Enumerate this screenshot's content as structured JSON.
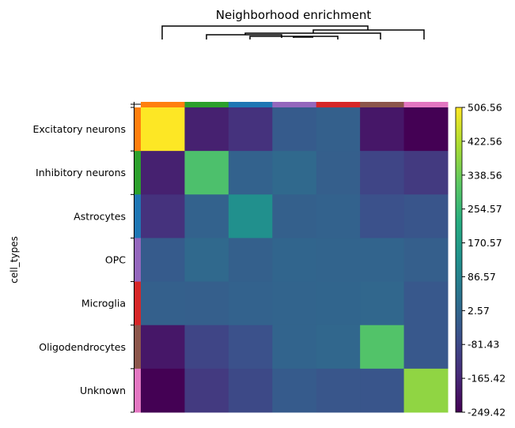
{
  "chart_data": {
    "type": "heatmap",
    "title": "Neighborhood enrichment",
    "ylabel": "cell_types",
    "categories": [
      "Excitatory neurons",
      "Inhibitory neurons",
      "Astrocytes",
      "OPC",
      "Microglia",
      "Oligodendrocytes",
      "Unknown"
    ],
    "category_colors": [
      "#ff7f0e",
      "#2ca02c",
      "#1f77b4",
      "#9467bd",
      "#d62728",
      "#8c564b",
      "#e377c2"
    ],
    "values": [
      [
        506.56,
        -180,
        -140,
        -30,
        -15,
        -200,
        -249.42
      ],
      [
        -180,
        290,
        -10,
        10,
        -20,
        -90,
        -120
      ],
      [
        -140,
        -10,
        130,
        -15,
        -10,
        -60,
        -50
      ],
      [
        -30,
        10,
        -15,
        0,
        -5,
        -5,
        -20
      ],
      [
        -15,
        -20,
        -10,
        -5,
        0,
        5,
        -40
      ],
      [
        -200,
        -90,
        -60,
        -5,
        5,
        300,
        -40
      ],
      [
        -249.42,
        -120,
        -80,
        -30,
        -45,
        -50,
        380
      ]
    ],
    "colorbar": {
      "vmin": -249.42,
      "vmax": 506.56,
      "ticks": [
        "506.56",
        "422.56",
        "338.56",
        "254.57",
        "170.57",
        "86.57",
        "2.57",
        "-81.43",
        "-165.42",
        "-249.42"
      ]
    },
    "colormap": "viridis",
    "dendrogram": true
  }
}
